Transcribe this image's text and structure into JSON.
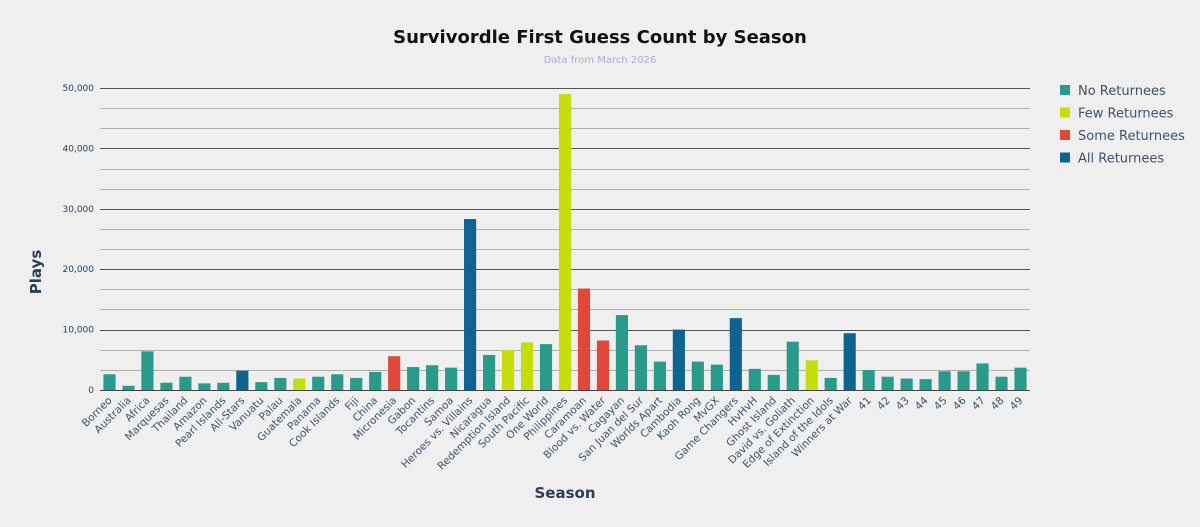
{
  "chart_data": {
    "type": "bar",
    "title": "Survivordle First Guess Count by Season",
    "subtitle": "Data from March 2026",
    "xlabel": "Season",
    "ylabel": "Plays",
    "ylim": [
      0,
      50000
    ],
    "yticks": [
      0,
      10000,
      20000,
      30000,
      40000,
      50000
    ],
    "ytick_labels": [
      "0",
      "10,000",
      "20,000",
      "30,000",
      "40,000",
      "50,000"
    ],
    "grid": true,
    "legend_position": "top-right",
    "legend": [
      {
        "name": "No Returnees",
        "color": "#2a9a8a"
      },
      {
        "name": "Few Returnees",
        "color": "#c6dd0a"
      },
      {
        "name": "Some Returnees",
        "color": "#e0483a"
      },
      {
        "name": "All Returnees",
        "color": "#0f6390"
      }
    ],
    "categories": [
      "Borneo",
      "Australia",
      "Africa",
      "Marquesas",
      "Thailand",
      "Amazon",
      "Pearl Islands",
      "All-Stars",
      "Vanuatu",
      "Palau",
      "Guatemala",
      "Panama",
      "Cook Islands",
      "Fiji",
      "China",
      "Micronesia",
      "Gabon",
      "Tocantins",
      "Samoa",
      "Heroes vs. Villains",
      "Nicaragua",
      "Redemption Island",
      "South Pacific",
      "One World",
      "Philippines",
      "Caramoan",
      "Blood vs. Water",
      "Cagayan",
      "San Juan del Sur",
      "Worlds Apart",
      "Cambodia",
      "Kaoh Rong",
      "MvGX",
      "Game Changers",
      "HvHvH",
      "Ghost Island",
      "David vs. Goliath",
      "Edge of Extinction",
      "Island of the Idols",
      "Winners at War",
      "41",
      "42",
      "43",
      "44",
      "45",
      "46",
      "47",
      "48",
      "49"
    ],
    "values": [
      2600,
      700,
      6400,
      1200,
      2200,
      1100,
      1200,
      3200,
      1300,
      2000,
      1900,
      2200,
      2600,
      2000,
      3000,
      5600,
      3800,
      4100,
      3700,
      28300,
      5800,
      6600,
      7900,
      7600,
      49000,
      16800,
      8200,
      12400,
      7400,
      4700,
      10000,
      4700,
      4200,
      11900,
      3500,
      2500,
      8000,
      4900,
      2000,
      9400,
      3300,
      2200,
      1900,
      1800,
      3100,
      3100,
      4400,
      2200,
      3700
    ],
    "groups": [
      "none",
      "none",
      "none",
      "none",
      "none",
      "none",
      "none",
      "all",
      "none",
      "none",
      "few",
      "none",
      "none",
      "none",
      "none",
      "some",
      "none",
      "none",
      "none",
      "all",
      "none",
      "few",
      "few",
      "none",
      "few",
      "some",
      "some",
      "none",
      "none",
      "none",
      "all",
      "none",
      "none",
      "all",
      "none",
      "none",
      "none",
      "few",
      "none",
      "all",
      "none",
      "none",
      "none",
      "none",
      "none",
      "none",
      "none",
      "none",
      "none"
    ]
  }
}
